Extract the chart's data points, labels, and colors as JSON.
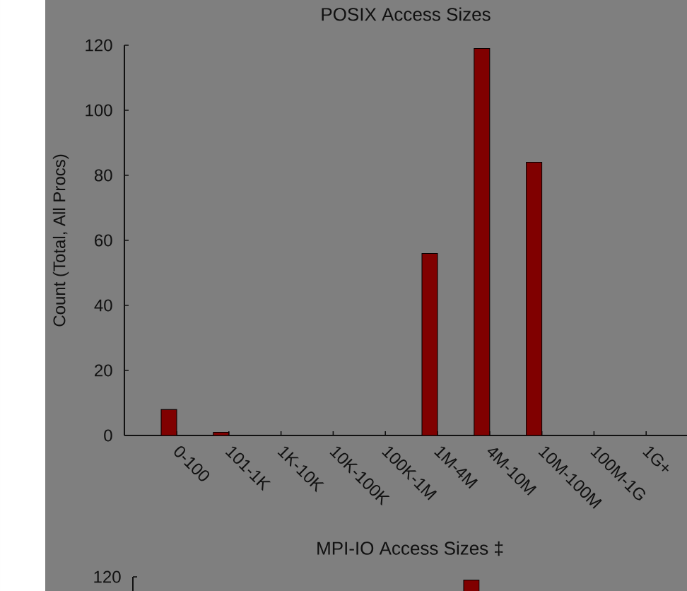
{
  "chart_data": [
    {
      "type": "bar",
      "title": "POSIX Access Sizes",
      "ylabel": "Count (Total, All Procs)",
      "categories": [
        "0-100",
        "101-1K",
        "1K-10K",
        "10K-100K",
        "100K-1M",
        "1M-4M",
        "4M-10M",
        "10M-100M",
        "100M-1G",
        "1G+"
      ],
      "values": [
        8,
        1,
        0,
        0,
        0,
        56,
        119,
        84,
        0,
        0
      ],
      "color": "#800000",
      "ylim": [
        0,
        120
      ],
      "yticks": [
        0,
        20,
        40,
        60,
        80,
        100,
        120
      ]
    },
    {
      "type": "bar",
      "title": "MPI-IO Access Sizes ‡",
      "categories": [
        null,
        null,
        null,
        null,
        null,
        null,
        null,
        null,
        null,
        null
      ],
      "values": [
        null,
        null,
        null,
        null,
        null,
        null,
        119,
        null,
        null,
        null
      ],
      "color": "#800000",
      "ylim": [
        0,
        120
      ],
      "yticks": [
        120
      ]
    }
  ]
}
